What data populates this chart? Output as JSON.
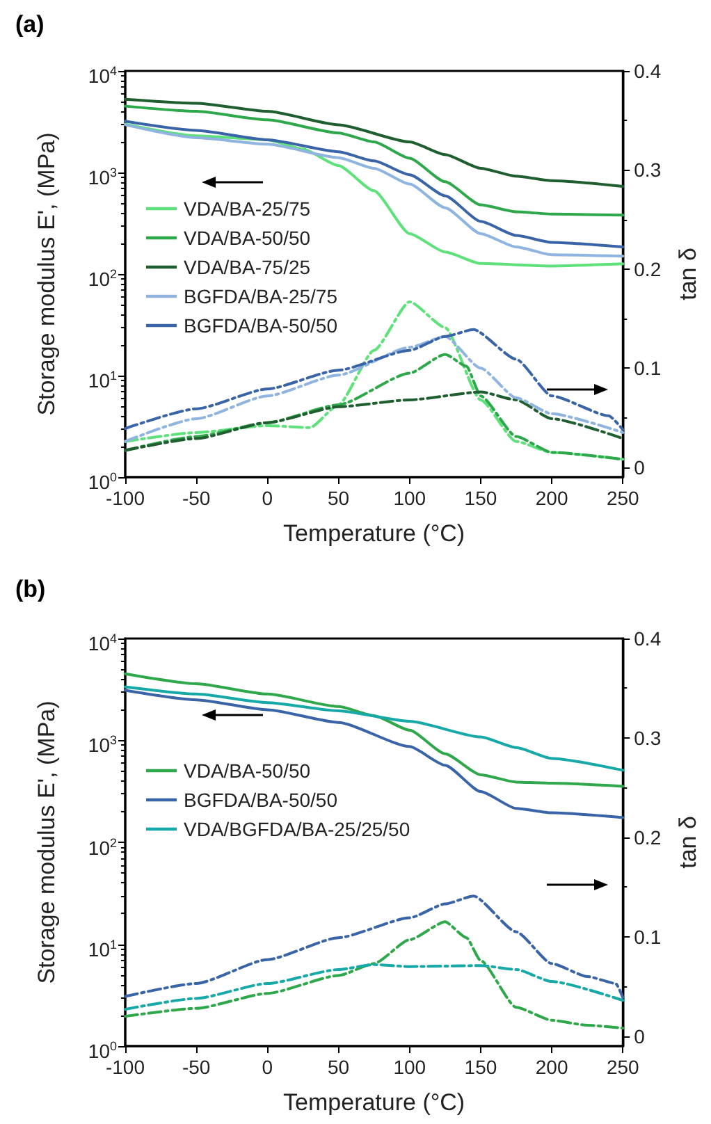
{
  "chart_data": [
    {
      "type": "line",
      "title": "(a)",
      "xlabel": "Temperature (°C)",
      "ylabel": "Storage modulus E', (MPa)",
      "y2label": "tan δ",
      "log": "y",
      "grid": false,
      "legend": "left",
      "marker": "none",
      "xlim": [
        -100,
        250
      ],
      "xticks": [
        -100,
        -50,
        0,
        50,
        100,
        150,
        200,
        250
      ],
      "ylim": [
        1,
        10000
      ],
      "yticks": [
        {
          "value": 1,
          "label": "10$^{0}$"
        },
        {
          "value": 10,
          "label": "10$^{1}$"
        },
        {
          "value": 100,
          "label": "10$^{2}$"
        },
        {
          "value": 1000,
          "label": "10$^{3}$"
        },
        {
          "value": 10000,
          "label": "10$^{4}$"
        }
      ],
      "y2lim": [
        -0.01,
        0.4
      ],
      "y2ticks": [
        0,
        0.1,
        0.2,
        0.3,
        0.4
      ],
      "series": [
        {
          "name": "VDA/BA-25/75",
          "color": "#5ee07a",
          "line_style": "solid",
          "x": [
            -100,
            -50,
            0,
            25,
            50,
            75,
            100,
            125,
            150,
            200,
            250
          ],
          "values": [
            3000,
            2300,
            2100,
            1700,
            1170,
            660,
            250,
            165,
            127,
            120,
            126
          ]
        },
        {
          "name": "VDA/BA-50/50",
          "color": "#2ea84a",
          "line_style": "solid",
          "x": [
            -100,
            -50,
            0,
            50,
            75,
            100,
            125,
            150,
            175,
            200,
            250
          ],
          "values": [
            4500,
            4000,
            3300,
            2450,
            2000,
            1380,
            810,
            480,
            410,
            390,
            380
          ]
        },
        {
          "name": "VDA/BA-75/25",
          "color": "#1f5e2e",
          "line_style": "solid",
          "x": [
            -100,
            -50,
            0,
            50,
            100,
            125,
            150,
            175,
            200,
            250
          ],
          "values": [
            5250,
            4800,
            4000,
            2950,
            2000,
            1500,
            1100,
            920,
            830,
            730
          ]
        },
        {
          "name": "BGFDA/BA-25/75",
          "color": "#8fb4e0",
          "line_style": "solid",
          "x": [
            -100,
            -50,
            0,
            50,
            75,
            100,
            125,
            150,
            175,
            200,
            250
          ],
          "values": [
            2950,
            2200,
            1900,
            1400,
            1100,
            770,
            450,
            250,
            185,
            155,
            150
          ]
        },
        {
          "name": "BGFDA/BA-50/50",
          "color": "#3a64a8",
          "line_style": "solid",
          "x": [
            -100,
            -50,
            0,
            50,
            75,
            100,
            125,
            150,
            175,
            200,
            250
          ],
          "values": [
            3200,
            2600,
            2100,
            1600,
            1300,
            950,
            590,
            330,
            240,
            205,
            185
          ]
        },
        {
          "color": "#5ee07a",
          "axis": "y2",
          "line_style": "dashed",
          "x": [
            -100,
            -50,
            0,
            30,
            50,
            75,
            100,
            125,
            150,
            175,
            200,
            250
          ],
          "values": [
            0.026,
            0.035,
            0.042,
            0.04,
            0.063,
            0.118,
            0.167,
            0.141,
            0.068,
            0.026,
            0.015,
            0.008
          ]
        },
        {
          "color": "#2ea84a",
          "axis": "y2",
          "line_style": "dashed",
          "x": [
            -100,
            -50,
            0,
            50,
            100,
            125,
            140,
            150,
            175,
            200,
            250
          ],
          "values": [
            0.017,
            0.031,
            0.045,
            0.063,
            0.095,
            0.114,
            0.102,
            0.072,
            0.031,
            0.015,
            0.008
          ]
        },
        {
          "color": "#1f5e2e",
          "axis": "y2",
          "line_style": "dashed",
          "x": [
            -100,
            -50,
            0,
            50,
            100,
            150,
            175,
            200,
            250
          ],
          "values": [
            0.017,
            0.029,
            0.045,
            0.061,
            0.068,
            0.076,
            0.068,
            0.049,
            0.029
          ]
        },
        {
          "color": "#8fb4e0",
          "axis": "y2",
          "line_style": "dashed",
          "x": [
            -100,
            -50,
            0,
            50,
            100,
            125,
            150,
            175,
            200,
            250
          ],
          "values": [
            0.026,
            0.049,
            0.072,
            0.093,
            0.121,
            0.132,
            0.1,
            0.07,
            0.054,
            0.035
          ]
        },
        {
          "color": "#3a64a8",
          "axis": "y2",
          "line_style": "dashed",
          "x": [
            -100,
            -50,
            0,
            50,
            100,
            125,
            145,
            175,
            200,
            240,
            250
          ],
          "values": [
            0.039,
            0.059,
            0.079,
            0.098,
            0.118,
            0.132,
            0.139,
            0.109,
            0.072,
            0.052,
            0.038
          ]
        }
      ]
    },
    {
      "type": "line",
      "title": "(b)",
      "xlabel": "Temperature (°C)",
      "ylabel": "Storage modulus E', (MPa)",
      "y2label": "tan δ",
      "log": "y",
      "grid": false,
      "legend": "left",
      "marker": "none",
      "xlim": [
        -100,
        250
      ],
      "xticks": [
        -100,
        -50,
        0,
        50,
        100,
        150,
        200,
        250
      ],
      "ylim": [
        1,
        10000
      ],
      "yticks": [
        {
          "value": 1,
          "label": "10$^{0}$"
        },
        {
          "value": 10,
          "label": "10$^{1}$"
        },
        {
          "value": 100,
          "label": "10$^{2}$"
        },
        {
          "value": 1000,
          "label": "10$^{3}$"
        },
        {
          "value": 10000,
          "label": "10$^{4}$"
        }
      ],
      "y2lim": [
        -0.01,
        0.4
      ],
      "y2ticks": [
        0,
        0.1,
        0.2,
        0.3,
        0.4
      ],
      "series": [
        {
          "name": "VDA/BA-50/50",
          "color": "#2ea84a",
          "line_style": "solid",
          "x": [
            -100,
            -50,
            0,
            50,
            75,
            100,
            125,
            150,
            175,
            200,
            250
          ],
          "values": [
            4500,
            3600,
            2850,
            2150,
            1750,
            1260,
            740,
            460,
            390,
            380,
            355
          ]
        },
        {
          "name": "BGFDA/BA-50/50",
          "color": "#3a64a8",
          "line_style": "solid",
          "x": [
            -100,
            -50,
            0,
            50,
            100,
            125,
            150,
            175,
            200,
            250
          ],
          "values": [
            3100,
            2500,
            2000,
            1500,
            870,
            570,
            315,
            215,
            195,
            175
          ]
        },
        {
          "name": "VDA/BGFDA/BA-25/25/50",
          "color": "#17a8a8",
          "line_style": "solid",
          "x": [
            -100,
            -50,
            0,
            50,
            100,
            150,
            175,
            200,
            250
          ],
          "values": [
            3350,
            2850,
            2350,
            1950,
            1540,
            1080,
            850,
            665,
            510
          ]
        },
        {
          "color": "#2ea84a",
          "axis": "y2",
          "line_style": "dashed",
          "x": [
            -100,
            -50,
            0,
            50,
            75,
            100,
            125,
            140,
            150,
            175,
            200,
            225,
            250
          ],
          "values": [
            0.02,
            0.028,
            0.043,
            0.061,
            0.073,
            0.097,
            0.115,
            0.099,
            0.076,
            0.029,
            0.016,
            0.011,
            0.008
          ]
        },
        {
          "color": "#3a64a8",
          "axis": "y2",
          "line_style": "dashed",
          "x": [
            -100,
            -50,
            0,
            50,
            100,
            125,
            145,
            175,
            200,
            225,
            245,
            250
          ],
          "values": [
            0.04,
            0.053,
            0.077,
            0.099,
            0.119,
            0.133,
            0.141,
            0.105,
            0.073,
            0.06,
            0.053,
            0.039
          ]
        },
        {
          "color": "#17a8a8",
          "axis": "y2",
          "line_style": "dashed",
          "x": [
            -100,
            -50,
            0,
            50,
            75,
            100,
            150,
            175,
            200,
            250
          ],
          "values": [
            0.027,
            0.038,
            0.053,
            0.067,
            0.072,
            0.07,
            0.071,
            0.067,
            0.055,
            0.036
          ]
        }
      ]
    }
  ]
}
